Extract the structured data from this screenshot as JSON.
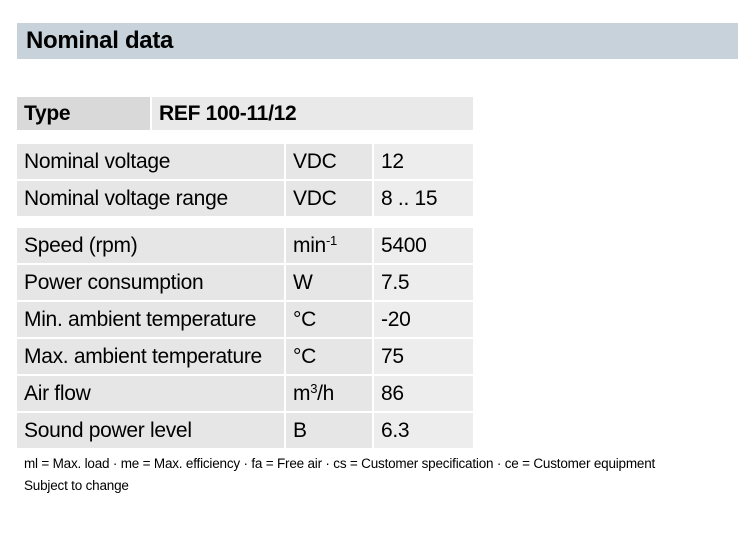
{
  "header": {
    "title": "Nominal data"
  },
  "type_row": {
    "label": "Type",
    "value": "REF 100-11/12"
  },
  "voltage_rows": [
    {
      "label": "Nominal voltage",
      "unit": "VDC",
      "value": "12"
    },
    {
      "label": "Nominal voltage range",
      "unit": "VDC",
      "value": "8 .. 15"
    }
  ],
  "performance_rows": [
    {
      "label": "Speed (rpm)",
      "unit_base": "min",
      "unit_sup": "-1",
      "value": "5400"
    },
    {
      "label": "Power consumption",
      "unit": "W",
      "value": "7.5"
    },
    {
      "label": "Min. ambient temperature",
      "unit": "°C",
      "value": "-20"
    },
    {
      "label": "Max. ambient temperature",
      "unit": "°C",
      "value": "75"
    },
    {
      "label": "Air flow",
      "unit_base": "m",
      "unit_sup": "3",
      "unit_tail": "/h",
      "value": "86"
    },
    {
      "label": "Sound power level",
      "unit": "B",
      "value": "6.3"
    }
  ],
  "footnotes": {
    "legend": "ml = Max. load · me = Max. efficiency · fa = Free air · cs = Customer specification · ce = Customer equipment",
    "notice": "Subject to change"
  },
  "colors": {
    "header_bg": "#c7d2da",
    "row_bg": "#e6e6e6",
    "value_bg": "#ededed"
  }
}
